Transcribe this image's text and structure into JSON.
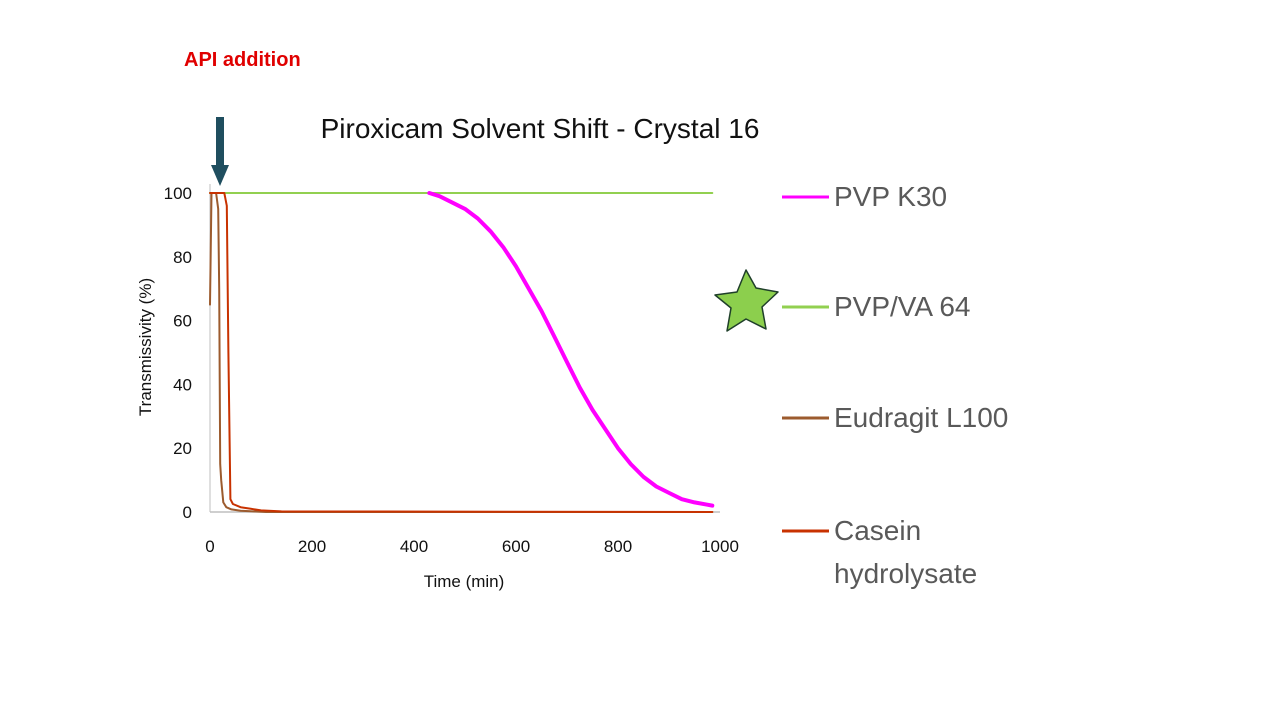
{
  "annotation": {
    "text": "API addition"
  },
  "colors": {
    "annotation_text": "#e00000",
    "arrow": "#1f4e5f",
    "star_fill": "#8ccf4d",
    "star_stroke": "#1f3f2a"
  },
  "icons": {
    "arrow": "down-arrow-icon",
    "star": "star-icon"
  },
  "chart_data": {
    "type": "line",
    "title": "Piroxicam Solvent Shift - Crystal 16",
    "xlabel": "Time (min)",
    "ylabel": "Transmissivity (%)",
    "xlim": [
      0,
      1000
    ],
    "ylim": [
      0,
      100
    ],
    "xticks": [
      "0",
      "200",
      "400",
      "600",
      "800",
      "1000"
    ],
    "yticks": [
      "0",
      "20",
      "40",
      "60",
      "80",
      "100"
    ],
    "grid": false,
    "legend_position": "right",
    "series": [
      {
        "name": "PVP K30",
        "color": "#ff00ff",
        "x": [
          430,
          450,
          475,
          500,
          525,
          550,
          575,
          600,
          625,
          650,
          675,
          700,
          725,
          750,
          775,
          800,
          825,
          850,
          875,
          900,
          925,
          950,
          975,
          985
        ],
        "y": [
          100,
          99,
          97,
          95,
          92,
          88,
          83,
          77,
          70,
          63,
          55,
          47,
          39,
          32,
          26,
          20,
          15,
          11,
          8,
          6,
          4,
          3,
          2.3,
          2
        ]
      },
      {
        "name": "PVP/VA 64",
        "color": "#92d050",
        "x": [
          0,
          985
        ],
        "y": [
          100,
          100
        ]
      },
      {
        "name": "Eudragit L100",
        "color": "#9c5b2e",
        "x": [
          0,
          3,
          8,
          12,
          16,
          18,
          20,
          22,
          26,
          32,
          42,
          60,
          85,
          110,
          985
        ],
        "y": [
          65,
          100,
          100,
          100,
          95,
          70,
          15,
          10,
          3,
          1.5,
          0.8,
          0.4,
          0.2,
          0,
          0
        ]
      },
      {
        "name": "Casein hydrolysate",
        "color": "#c83200",
        "x": [
          0,
          2,
          8,
          20,
          28,
          33,
          36,
          40,
          45,
          60,
          80,
          100,
          140,
          985
        ],
        "y": [
          100,
          100,
          100,
          100,
          100,
          96,
          50,
          4,
          2.5,
          1.5,
          1,
          0.5,
          0.2,
          0
        ]
      }
    ]
  }
}
